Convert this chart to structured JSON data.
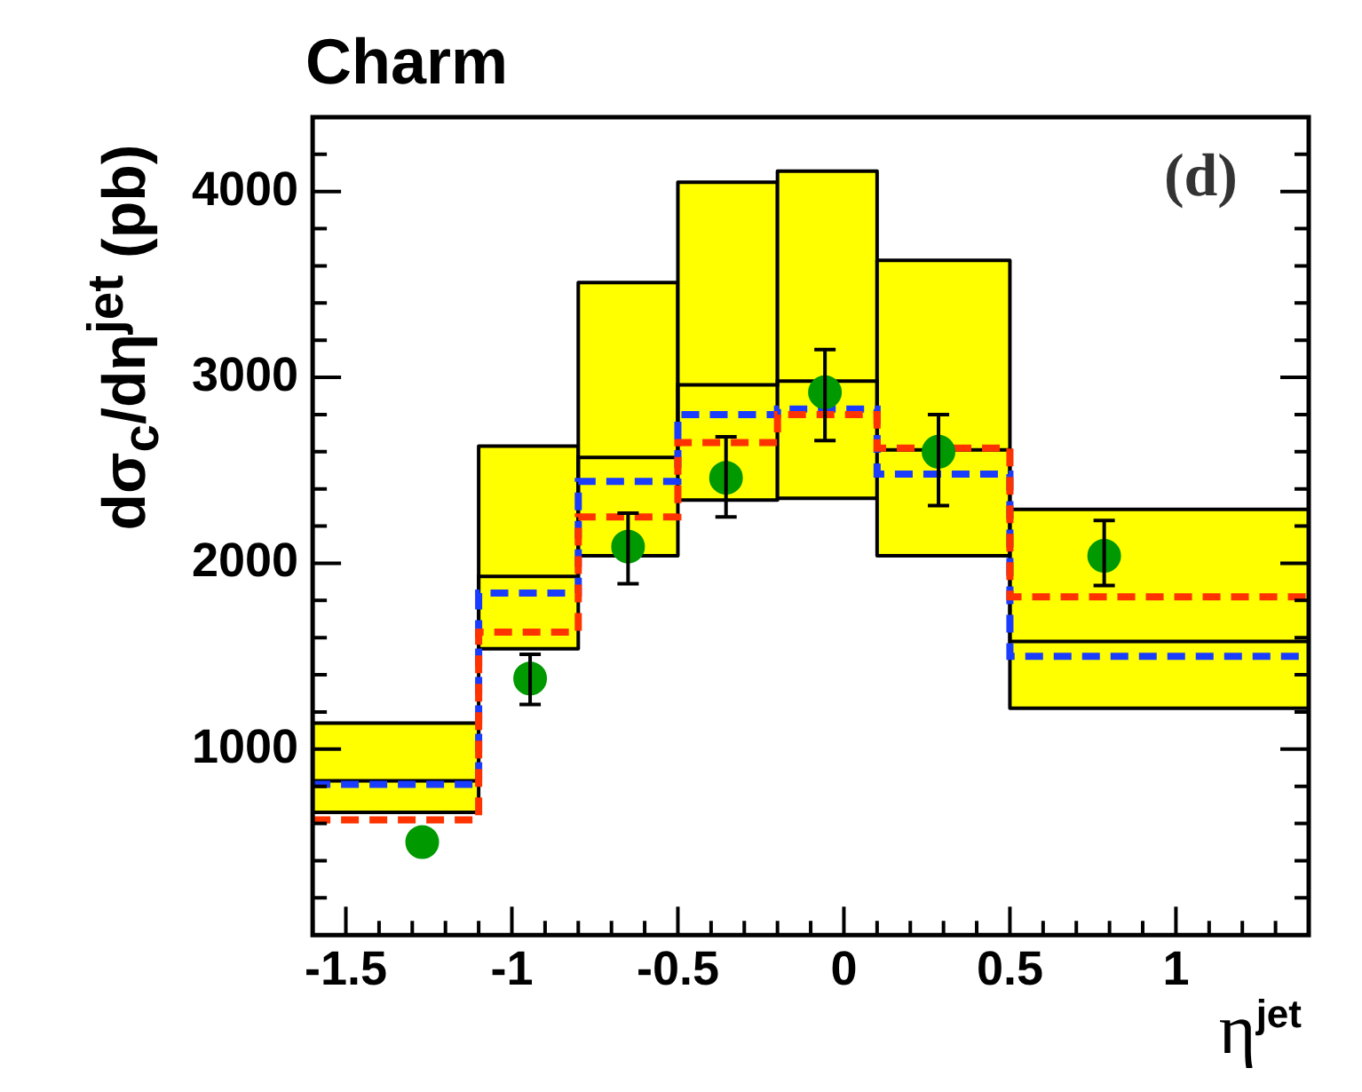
{
  "chart_data": {
    "type": "step",
    "title": "Charm",
    "xlabel": "η$^{jet}$",
    "ylabel": "dσ$_{c}$/dη$^{jet}$ (pb)",
    "annotations": [
      "(d)"
    ],
    "xlim": [
      -1.6,
      1.4
    ],
    "xticks": [
      {
        "value": -1.6,
        "label": null
      },
      -1.5,
      {
        "value": -1.4,
        "label": null
      },
      {
        "value": -1.3,
        "label": null
      },
      {
        "value": -1.2,
        "label": null
      },
      {
        "value": -1.1,
        "label": null
      },
      -1,
      {
        "value": -0.9,
        "label": null
      },
      {
        "value": -0.8,
        "label": null
      },
      {
        "value": -0.7,
        "label": null
      },
      {
        "value": -0.6,
        "label": null
      },
      -0.5,
      {
        "value": -0.4,
        "label": null
      },
      {
        "value": -0.3,
        "label": null
      },
      {
        "value": -0.2,
        "label": null
      },
      {
        "value": -0.1,
        "label": null
      },
      0,
      {
        "value": 0.1,
        "label": null
      },
      {
        "value": 0.2,
        "label": null
      },
      {
        "value": 0.3,
        "label": null
      },
      {
        "value": 0.4,
        "label": null
      },
      0.5,
      {
        "value": 0.6,
        "label": null
      },
      {
        "value": 0.7,
        "label": null
      },
      {
        "value": 0.8,
        "label": null
      },
      {
        "value": 0.9,
        "label": null
      },
      1,
      {
        "value": 1.1,
        "label": null
      },
      {
        "value": 1.2,
        "label": null
      },
      {
        "value": 1.3,
        "label": null
      },
      {
        "value": 1.4,
        "label": null
      }
    ],
    "ylim": [
      0,
      4400
    ],
    "yticks": [
      {
        "value": 200,
        "label": null
      },
      {
        "value": 400,
        "label": null
      },
      {
        "value": 600,
        "label": null
      },
      {
        "value": 800,
        "label": null
      },
      1000,
      {
        "value": 1200,
        "label": null
      },
      {
        "value": 1400,
        "label": null
      },
      {
        "value": 1600,
        "label": null
      },
      {
        "value": 1800,
        "label": null
      },
      2000,
      {
        "value": 2200,
        "label": null
      },
      {
        "value": 2400,
        "label": null
      },
      {
        "value": 2600,
        "label": null
      },
      {
        "value": 2800,
        "label": null
      },
      3000,
      {
        "value": 3200,
        "label": null
      },
      {
        "value": 3400,
        "label": null
      },
      {
        "value": 3600,
        "label": null
      },
      {
        "value": 3800,
        "label": null
      },
      4000,
      {
        "value": 4200,
        "label": null
      },
      {
        "value": 4400,
        "label": null
      }
    ],
    "grid": false,
    "legend": false,
    "series": [
      {
        "type": "histogram",
        "color": "#ffff00",
        "bins": [
          -1.6,
          -1.1,
          -0.8,
          -0.5,
          -0.2,
          0.1,
          0.5,
          1.4
        ],
        "base": [
          660,
          1540,
          2040,
          2340,
          2350,
          2040,
          1220
        ],
        "values": [
          480,
          1090,
          1470,
          1710,
          1760,
          1590,
          1070
        ]
      },
      {
        "color": "#000000",
        "x": [
          -1.6,
          -1.1,
          -0.8,
          -0.5,
          -0.2,
          0.1,
          0.5,
          1.4
        ],
        "values": [
          830,
          1930,
          2570,
          2960,
          2980,
          2610,
          1580,
          1580
        ]
      },
      {
        "color": "#ff3300",
        "line_style": "dashed",
        "x": [
          -1.6,
          -1.1,
          -0.8,
          -0.5,
          -0.2,
          0.1,
          0.5,
          1.4
        ],
        "values": [
          620,
          1630,
          2250,
          2650,
          2800,
          2620,
          1820,
          1820
        ]
      },
      {
        "color": "#1a3cff",
        "line_style": "dashed",
        "x": [
          -1.6,
          -1.1,
          -0.8,
          -0.5,
          -0.2,
          0.1,
          0.5,
          1.4
        ],
        "values": [
          810,
          1840,
          2440,
          2800,
          2830,
          2480,
          1500,
          1500
        ]
      },
      {
        "type": "scatter",
        "color": "#009900",
        "marker": "circle",
        "x": [
          -1.27,
          -0.945,
          -0.65,
          -0.355,
          -0.057,
          0.285,
          0.784
        ],
        "values": [
          500,
          1380,
          2090,
          2460,
          2920,
          2600,
          2040
        ],
        "errors": [
          null,
          [
            1240,
            1510
          ],
          [
            1890,
            2270
          ],
          [
            2250,
            2680
          ],
          [
            2660,
            3150
          ],
          [
            2310,
            2800
          ],
          [
            1880,
            2230
          ]
        ]
      }
    ]
  }
}
